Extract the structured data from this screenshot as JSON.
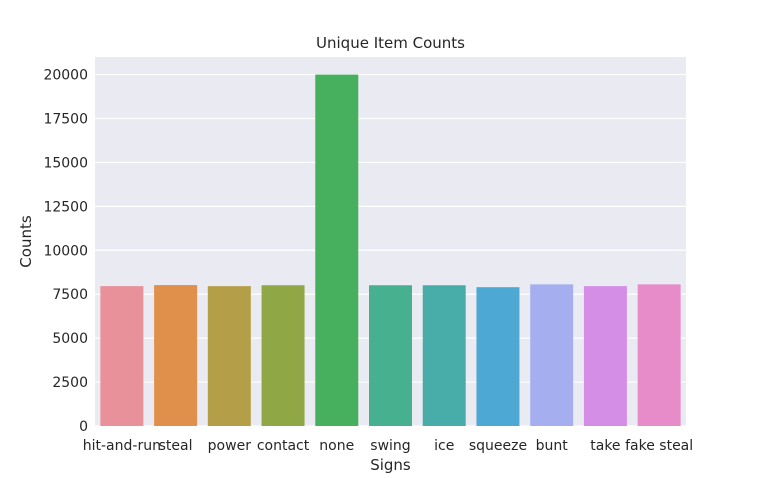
{
  "chart_data": {
    "type": "bar",
    "title": "Unique Item Counts",
    "xlabel": "Signs",
    "ylabel": "Counts",
    "categories": [
      "hit-and-run",
      "steal",
      "power",
      "contact",
      "none",
      "swing",
      "ice",
      "squeeze",
      "bunt",
      "take",
      "fake steal"
    ],
    "values": [
      7960,
      8020,
      7960,
      8010,
      20000,
      8010,
      8010,
      7900,
      8060,
      7960,
      8060
    ],
    "colors": [
      "#e8919b",
      "#e0904a",
      "#b59e48",
      "#8fa744",
      "#47b05f",
      "#47b08f",
      "#48ada8",
      "#4da8d3",
      "#a5aeee",
      "#d48ee6",
      "#e88bc9"
    ],
    "ylim": [
      0,
      21000
    ],
    "yticks": [
      0,
      2500,
      5000,
      7500,
      10000,
      12500,
      15000,
      17500,
      20000
    ],
    "grid": true,
    "background": "#eaeaf2"
  }
}
